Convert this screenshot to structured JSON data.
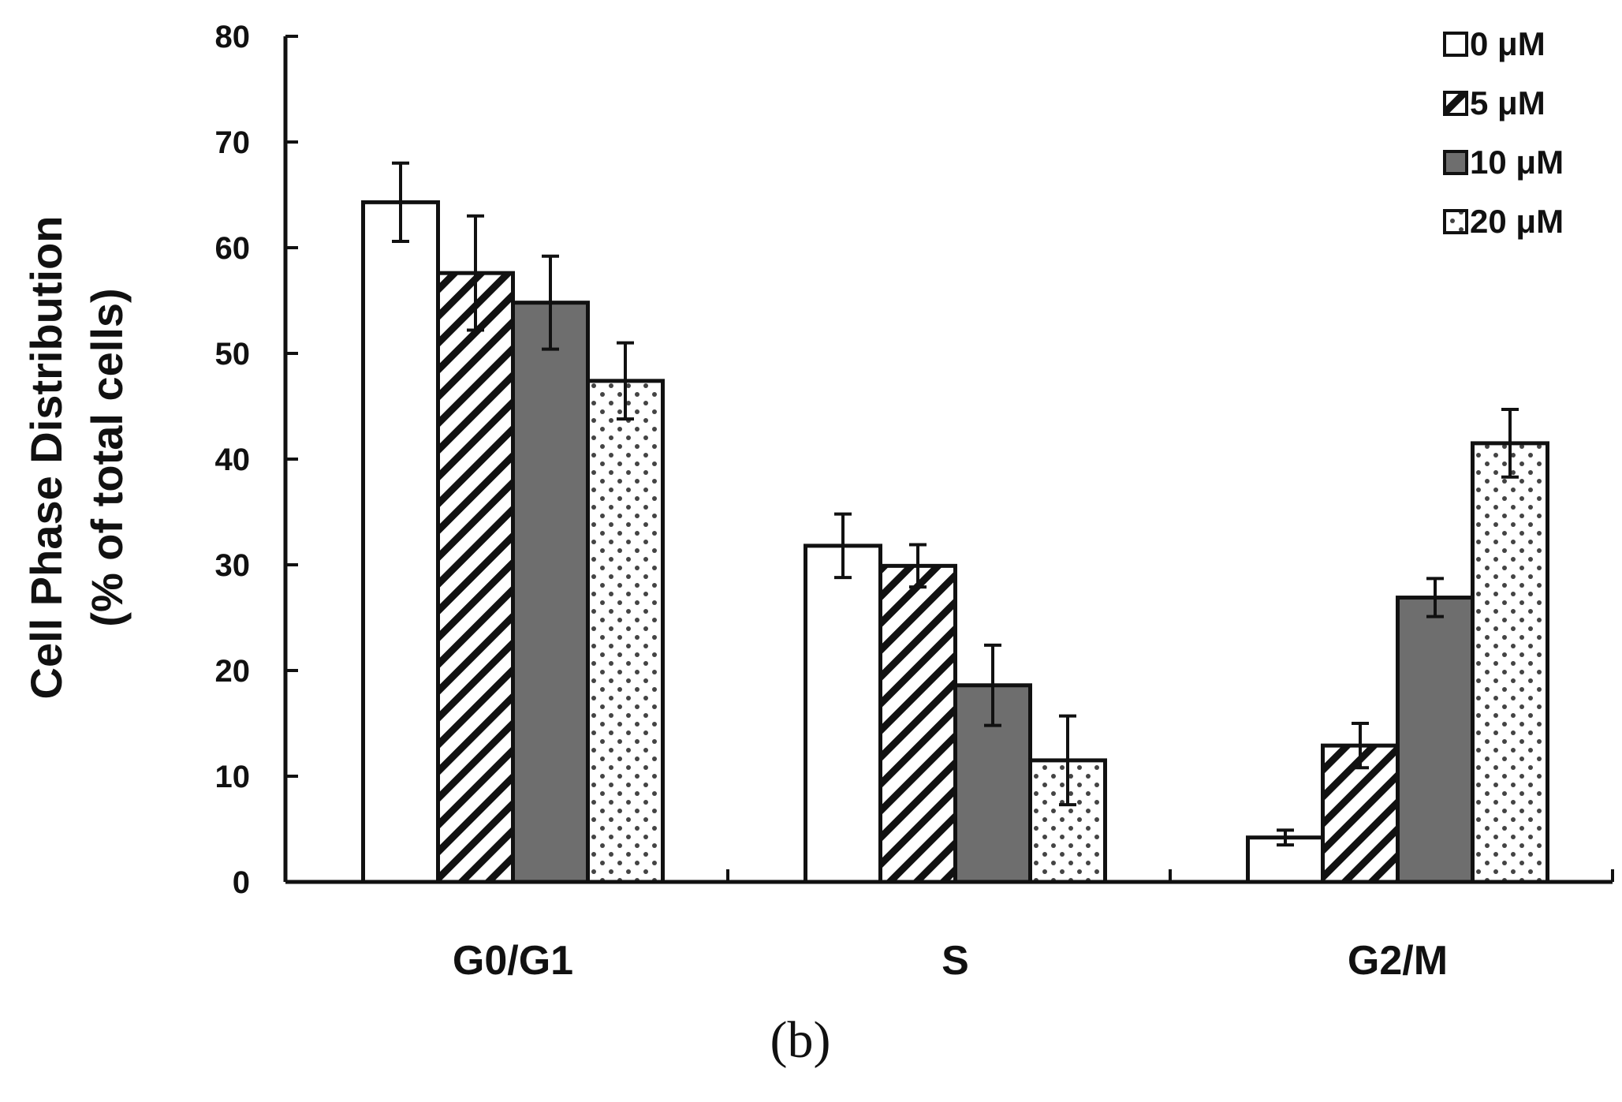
{
  "chart_data": {
    "type": "bar",
    "categories": [
      "G0/G1",
      "S",
      "G2/M"
    ],
    "series": [
      {
        "name": "0 μM",
        "fill": "plain",
        "values": [
          64.3,
          31.8,
          4.2
        ],
        "errors": [
          3.7,
          3.0,
          0.7
        ]
      },
      {
        "name": "5 μM",
        "fill": "hatch",
        "values": [
          57.6,
          29.9,
          12.9
        ],
        "errors": [
          5.4,
          2.0,
          2.1
        ]
      },
      {
        "name": "10 μM",
        "fill": "solid",
        "values": [
          54.8,
          18.6,
          26.9
        ],
        "errors": [
          4.4,
          3.8,
          1.8
        ]
      },
      {
        "name": "20 μM",
        "fill": "dotted",
        "values": [
          47.4,
          11.5,
          41.5
        ],
        "errors": [
          3.6,
          4.2,
          3.2
        ]
      }
    ],
    "yticks": [
      "0",
      "10",
      "20",
      "30",
      "40",
      "50",
      "60",
      "70",
      "80"
    ],
    "ylim": [
      0,
      80
    ],
    "ylabel_line1": "Cell Phase Distribution",
    "ylabel_line2": "(% of total cells)",
    "legend_position": "top-right",
    "grid": false,
    "panel_label": "(b)",
    "colors": {
      "bar_outline": "#111111",
      "solid_fill": "#6e6e6e",
      "hatch": "#111111",
      "dot": "#333333"
    }
  }
}
